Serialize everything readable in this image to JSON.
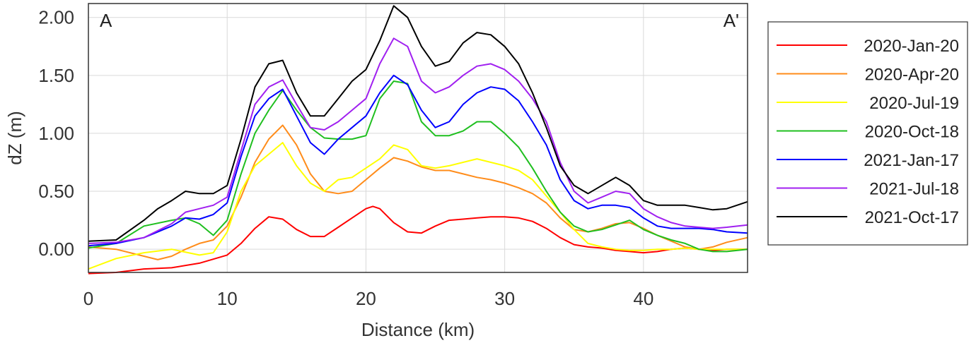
{
  "chart_data": {
    "type": "line",
    "xlabel": "Distance (km)",
    "ylabel": "dZ (m)",
    "xlim": [
      0,
      47.5
    ],
    "ylim": [
      -0.2,
      2.12
    ],
    "xticks": [
      0,
      10,
      20,
      30,
      40
    ],
    "xtick_labels": [
      "0",
      "10",
      "20",
      "30",
      "40"
    ],
    "yticks": [
      0,
      0.5,
      1.0,
      1.5,
      2.0
    ],
    "ytick_labels": [
      "0.00",
      "0.50",
      "1.00",
      "1.50",
      "2.00"
    ],
    "grid": true,
    "legend_position": "right",
    "annotations": {
      "left": "A",
      "right": "A'"
    },
    "series": [
      {
        "name": "2020-Jan-20",
        "color": "#ff0000",
        "x": [
          0,
          2,
          4,
          6,
          8,
          10,
          11,
          12,
          13,
          14,
          15,
          16,
          17,
          18,
          19,
          20,
          20.5,
          21,
          22,
          23,
          24,
          25,
          26,
          27,
          28,
          29,
          30,
          31,
          32,
          33,
          34,
          35,
          36,
          37,
          38,
          39,
          40,
          41,
          42,
          43,
          44,
          45,
          46,
          47.5
        ],
        "y": [
          -0.21,
          -0.2,
          -0.17,
          -0.16,
          -0.12,
          -0.05,
          0.05,
          0.18,
          0.28,
          0.26,
          0.17,
          0.11,
          0.11,
          0.19,
          0.27,
          0.35,
          0.37,
          0.35,
          0.23,
          0.15,
          0.14,
          0.2,
          0.25,
          0.26,
          0.27,
          0.28,
          0.28,
          0.27,
          0.24,
          0.18,
          0.1,
          0.04,
          0.02,
          0.01,
          -0.01,
          -0.02,
          -0.03,
          -0.02,
          0.0,
          0.01,
          0.0,
          -0.01,
          0.0,
          0.0
        ]
      },
      {
        "name": "2020-Apr-20",
        "color": "#ff8c1a",
        "x": [
          0,
          2,
          4,
          5,
          6,
          7,
          8,
          9,
          10,
          11,
          12,
          13,
          14,
          15,
          16,
          17,
          18,
          19,
          20,
          21,
          22,
          23,
          24,
          25,
          26,
          27,
          28,
          29,
          30,
          31,
          32,
          33,
          34,
          35,
          36,
          37,
          38,
          39,
          40,
          41,
          42,
          43,
          44,
          45,
          46,
          47.5
        ],
        "y": [
          0.02,
          0.0,
          -0.06,
          -0.09,
          -0.06,
          0.0,
          0.05,
          0.08,
          0.2,
          0.45,
          0.75,
          0.95,
          1.07,
          0.9,
          0.65,
          0.5,
          0.48,
          0.5,
          0.6,
          0.7,
          0.79,
          0.76,
          0.71,
          0.68,
          0.68,
          0.65,
          0.62,
          0.6,
          0.57,
          0.53,
          0.48,
          0.4,
          0.27,
          0.17,
          0.15,
          0.18,
          0.22,
          0.23,
          0.18,
          0.12,
          0.07,
          0.02,
          0.0,
          0.02,
          0.06,
          0.1
        ]
      },
      {
        "name": "2020-Jul-19",
        "color": "#ffff00",
        "x": [
          0,
          2,
          4,
          6,
          8,
          9,
          10,
          11,
          12,
          13,
          14,
          15,
          16,
          17,
          18,
          19,
          20,
          21,
          22,
          23,
          24,
          25,
          26,
          27,
          28,
          29,
          30,
          31,
          32,
          33,
          34,
          35,
          36,
          37,
          38,
          39,
          40,
          41,
          42,
          43,
          44,
          45,
          46,
          47.5
        ],
        "y": [
          -0.17,
          -0.08,
          -0.03,
          0.0,
          -0.05,
          -0.03,
          0.15,
          0.5,
          0.72,
          0.82,
          0.92,
          0.72,
          0.57,
          0.5,
          0.6,
          0.62,
          0.7,
          0.78,
          0.9,
          0.86,
          0.72,
          0.7,
          0.72,
          0.75,
          0.78,
          0.75,
          0.72,
          0.68,
          0.6,
          0.46,
          0.32,
          0.17,
          0.05,
          0.02,
          0.0,
          -0.01,
          -0.01,
          0.0,
          0.0,
          0.01,
          0.0,
          0.0,
          0.0,
          0.0
        ]
      },
      {
        "name": "2020-Oct-18",
        "color": "#1fbf1f",
        "x": [
          0,
          2,
          4,
          6,
          7,
          8,
          9,
          10,
          11,
          12,
          13,
          14,
          15,
          16,
          17,
          18,
          19,
          20,
          21,
          22,
          23,
          24,
          25,
          26,
          27,
          28,
          29,
          30,
          31,
          32,
          33,
          34,
          35,
          36,
          37,
          38,
          39,
          40,
          41,
          42,
          43,
          44,
          45,
          46,
          47.5
        ],
        "y": [
          0.01,
          0.05,
          0.2,
          0.25,
          0.27,
          0.22,
          0.12,
          0.25,
          0.65,
          1.0,
          1.2,
          1.37,
          1.2,
          1.05,
          0.96,
          0.95,
          0.95,
          0.98,
          1.3,
          1.45,
          1.43,
          1.1,
          0.98,
          0.98,
          1.02,
          1.1,
          1.1,
          1.0,
          0.88,
          0.7,
          0.5,
          0.32,
          0.2,
          0.15,
          0.17,
          0.21,
          0.25,
          0.17,
          0.12,
          0.08,
          0.05,
          0.0,
          -0.02,
          -0.02,
          0.0
        ]
      },
      {
        "name": "2021-Jan-17",
        "color": "#0000ff",
        "x": [
          0,
          2,
          4,
          6,
          7,
          8,
          9,
          10,
          11,
          12,
          13,
          14,
          15,
          16,
          17,
          18,
          19,
          20,
          21,
          22,
          23,
          24,
          25,
          26,
          27,
          28,
          29,
          30,
          31,
          32,
          33,
          34,
          35,
          36,
          37,
          38,
          39,
          40,
          41,
          42,
          43,
          44,
          45,
          46,
          47.5
        ],
        "y": [
          0.03,
          0.05,
          0.1,
          0.2,
          0.27,
          0.26,
          0.3,
          0.4,
          0.8,
          1.15,
          1.3,
          1.38,
          1.15,
          0.92,
          0.82,
          0.95,
          1.05,
          1.15,
          1.35,
          1.5,
          1.42,
          1.2,
          1.05,
          1.1,
          1.25,
          1.35,
          1.4,
          1.38,
          1.28,
          1.1,
          0.9,
          0.6,
          0.42,
          0.35,
          0.38,
          0.38,
          0.36,
          0.27,
          0.2,
          0.18,
          0.18,
          0.18,
          0.17,
          0.15,
          0.14
        ]
      },
      {
        "name": "2021-Jul-18",
        "color": "#a020f0",
        "x": [
          0,
          2,
          4,
          6,
          7,
          8,
          9,
          10,
          11,
          12,
          13,
          14,
          15,
          16,
          17,
          18,
          19,
          20,
          21,
          22,
          23,
          24,
          25,
          26,
          27,
          28,
          29,
          30,
          31,
          32,
          33,
          34,
          35,
          36,
          37,
          38,
          39,
          40,
          41,
          42,
          43,
          44,
          45,
          46,
          47.5
        ],
        "y": [
          0.05,
          0.06,
          0.1,
          0.22,
          0.32,
          0.35,
          0.38,
          0.45,
          0.85,
          1.25,
          1.4,
          1.46,
          1.25,
          1.05,
          1.03,
          1.1,
          1.2,
          1.3,
          1.6,
          1.82,
          1.75,
          1.45,
          1.35,
          1.4,
          1.5,
          1.58,
          1.6,
          1.55,
          1.45,
          1.3,
          1.1,
          0.75,
          0.5,
          0.4,
          0.45,
          0.5,
          0.48,
          0.35,
          0.28,
          0.23,
          0.2,
          0.19,
          0.18,
          0.19,
          0.21
        ]
      },
      {
        "name": "2021-Oct-17",
        "color": "#000000",
        "x": [
          0,
          2,
          4,
          5,
          6,
          7,
          8,
          9,
          10,
          11,
          12,
          13,
          14,
          15,
          16,
          17,
          18,
          19,
          20,
          21,
          22,
          23,
          24,
          25,
          26,
          27,
          28,
          29,
          30,
          31,
          32,
          33,
          34,
          35,
          36,
          37,
          38,
          39,
          40,
          41,
          42,
          43,
          44,
          45,
          46,
          47.5
        ],
        "y": [
          0.07,
          0.08,
          0.25,
          0.35,
          0.42,
          0.5,
          0.48,
          0.48,
          0.55,
          0.95,
          1.4,
          1.6,
          1.63,
          1.35,
          1.15,
          1.15,
          1.3,
          1.45,
          1.55,
          1.8,
          2.1,
          2.0,
          1.75,
          1.58,
          1.62,
          1.78,
          1.87,
          1.85,
          1.75,
          1.6,
          1.35,
          1.05,
          0.72,
          0.55,
          0.48,
          0.55,
          0.62,
          0.55,
          0.42,
          0.38,
          0.38,
          0.38,
          0.36,
          0.34,
          0.35,
          0.41
        ]
      }
    ]
  }
}
